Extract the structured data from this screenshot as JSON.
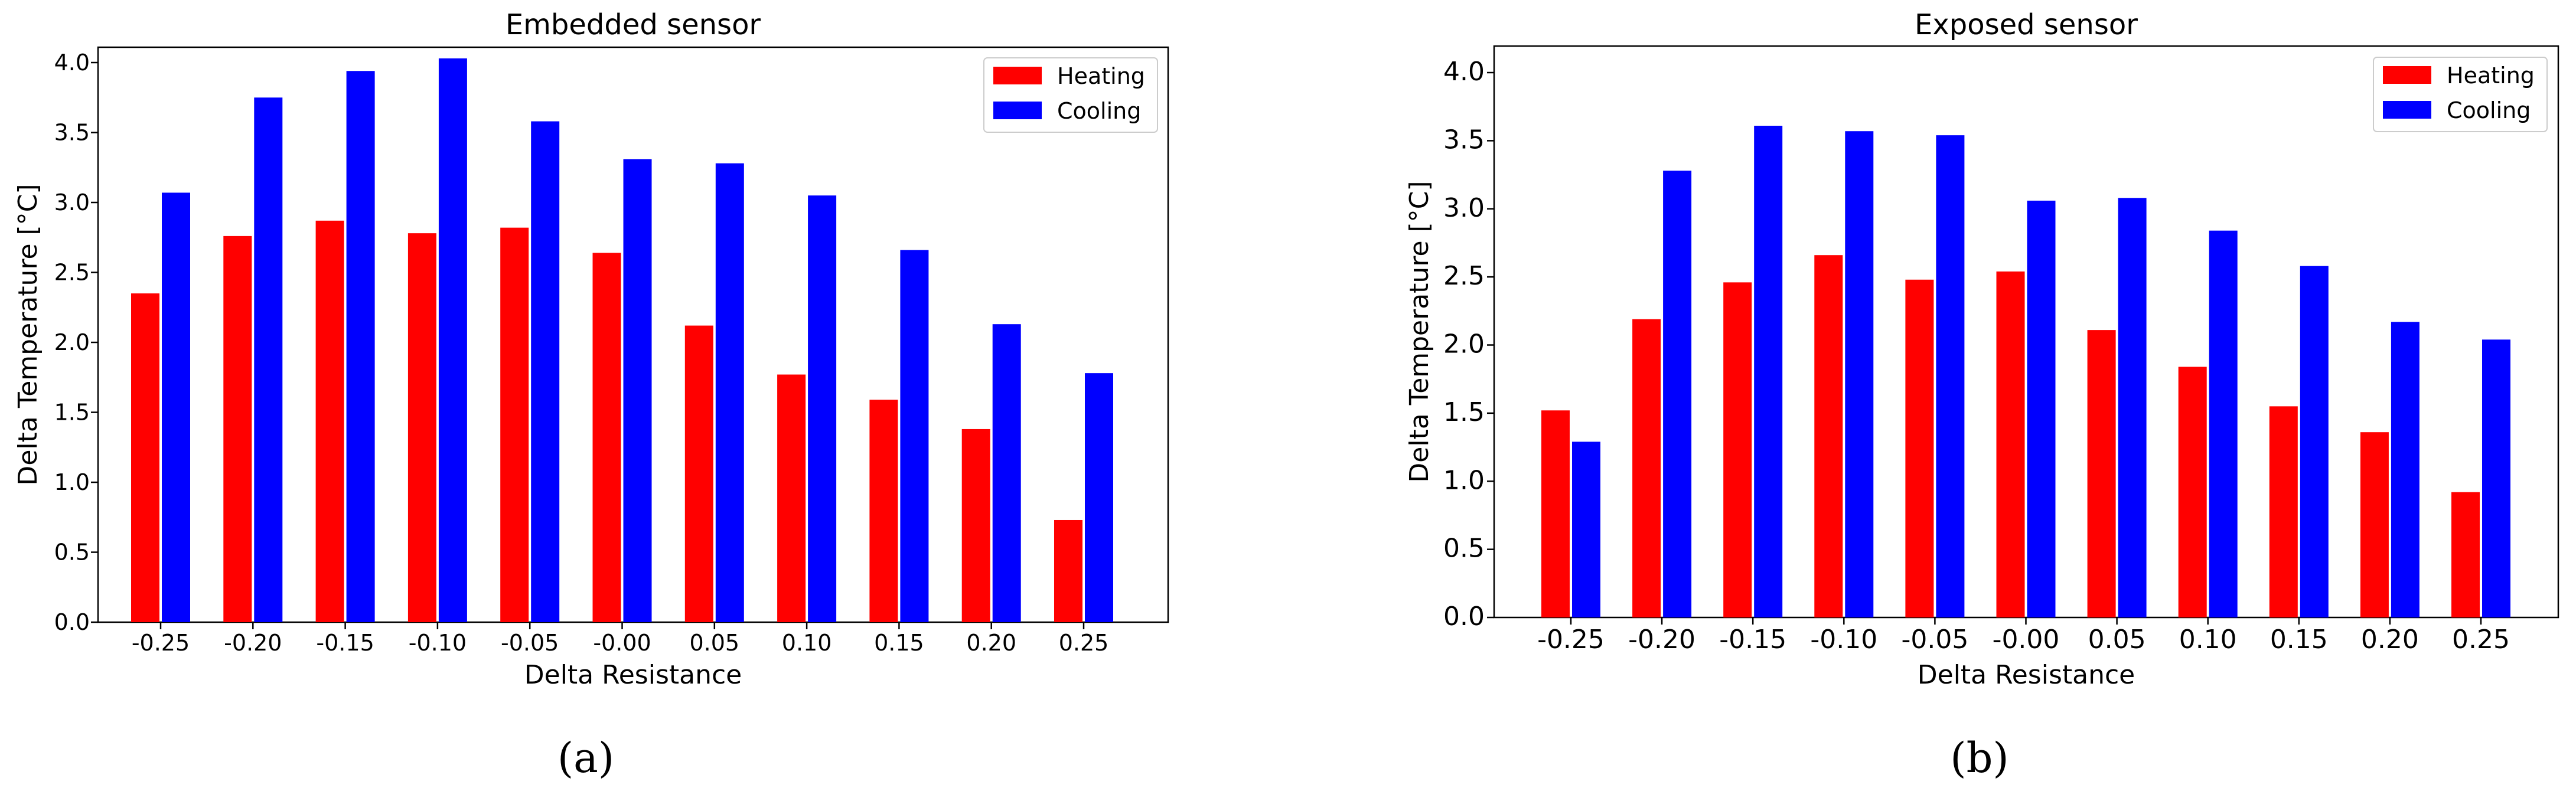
{
  "chart_data": [
    {
      "type": "bar",
      "title": "Embedded sensor",
      "xlabel": "Delta Resistance",
      "ylabel": "Delta Temperature [°C]",
      "categories": [
        "-0.25",
        "-0.20",
        "-0.15",
        "-0.10",
        "-0.05",
        "-0.00",
        "0.05",
        "0.10",
        "0.15",
        "0.20",
        "0.25"
      ],
      "series": [
        {
          "name": "Heating",
          "color": "#ff0000",
          "values": [
            2.35,
            2.76,
            2.87,
            2.78,
            2.82,
            2.64,
            2.12,
            1.77,
            1.59,
            1.38,
            0.73
          ]
        },
        {
          "name": "Cooling",
          "color": "#0000ff",
          "values": [
            3.07,
            3.75,
            3.94,
            4.03,
            3.58,
            3.31,
            3.28,
            3.05,
            2.66,
            2.13,
            1.78
          ]
        }
      ],
      "ylim": [
        0,
        4.2
      ],
      "yticks": [
        "0.0",
        "0.5",
        "1.0",
        "1.5",
        "2.0",
        "2.5",
        "3.0",
        "3.5",
        "4.0"
      ],
      "legend": "top-right",
      "caption": "(a)"
    },
    {
      "type": "bar",
      "title": "Exposed sensor",
      "xlabel": "Delta Resistance",
      "ylabel": "Delta Temperature [°C]",
      "categories": [
        "-0.25",
        "-0.20",
        "-0.15",
        "-0.10",
        "-0.05",
        "-0.00",
        "0.05",
        "0.10",
        "0.15",
        "0.20",
        "0.25"
      ],
      "series": [
        {
          "name": "Heating",
          "color": "#ff0000",
          "values": [
            1.52,
            2.19,
            2.46,
            2.66,
            2.48,
            2.54,
            2.11,
            1.84,
            1.55,
            1.36,
            0.92
          ]
        },
        {
          "name": "Cooling",
          "color": "#0000ff",
          "values": [
            1.29,
            3.28,
            3.61,
            3.57,
            3.54,
            3.06,
            3.08,
            2.84,
            2.58,
            2.17,
            2.04
          ]
        }
      ],
      "ylim": [
        0,
        4.2
      ],
      "yticks": [
        "0.0",
        "0.5",
        "1.0",
        "1.5",
        "2.0",
        "2.5",
        "3.0",
        "3.5",
        "4.0"
      ],
      "legend": "top-right",
      "caption": "(b)"
    }
  ]
}
